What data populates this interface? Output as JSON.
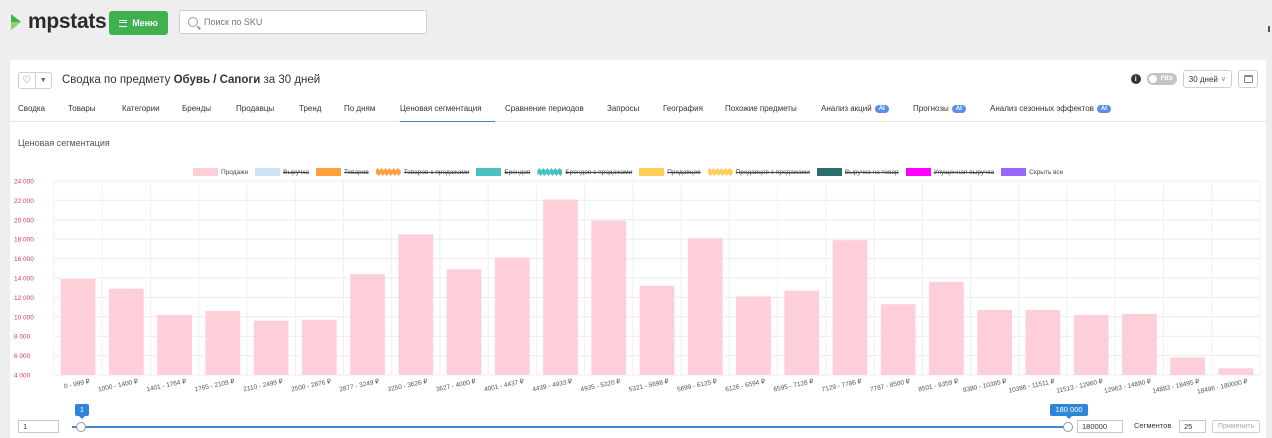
{
  "app": {
    "brand": "mpstats",
    "menu_label": "Меню",
    "search_placeholder": "Поиск по SKU",
    "brand_color": "#3fb24f"
  },
  "header": {
    "title_prefix": "Сводка по предмету",
    "subject": "Обувь / Сапоги",
    "title_suffix": "за 30 дней",
    "fbs_label": "FBS",
    "fbs_enabled": false,
    "period": "30 дней"
  },
  "tabs": [
    {
      "label": "Сводка",
      "active": false,
      "ai": false
    },
    {
      "label": "Товары",
      "active": false,
      "ai": false
    },
    {
      "label": "Категории",
      "active": false,
      "ai": false
    },
    {
      "label": "Бренды",
      "active": false,
      "ai": false
    },
    {
      "label": "Продавцы",
      "active": false,
      "ai": false
    },
    {
      "label": "Тренд",
      "active": false,
      "ai": false
    },
    {
      "label": "По дням",
      "active": false,
      "ai": false
    },
    {
      "label": "Ценовая сегментация",
      "active": true,
      "ai": false
    },
    {
      "label": "Сравнение периодов",
      "active": false,
      "ai": false
    },
    {
      "label": "Запросы",
      "active": false,
      "ai": false
    },
    {
      "label": "География",
      "active": false,
      "ai": false
    },
    {
      "label": "Похожие предметы",
      "active": false,
      "ai": false
    },
    {
      "label": "Анализ акций",
      "active": false,
      "ai": true
    },
    {
      "label": "Прогнозы",
      "active": false,
      "ai": true
    },
    {
      "label": "Анализ сезонных эффектов",
      "active": false,
      "ai": true
    }
  ],
  "ai_badge": "AI",
  "section_title": "Ценовая сегментация",
  "legend": [
    {
      "label": "Продажи",
      "color": "#ffcfd9",
      "enabled": true,
      "style": "solid"
    },
    {
      "label": "Выручка",
      "color": "#cfe3f7",
      "enabled": false,
      "style": "solid"
    },
    {
      "label": "Товаров",
      "color": "#ff9f40",
      "enabled": false,
      "style": "solid"
    },
    {
      "label": "Товаров с продажами",
      "color": "#ff9f40",
      "enabled": false,
      "style": "zigzag"
    },
    {
      "label": "Брендов",
      "color": "#4bc0c0",
      "enabled": false,
      "style": "solid"
    },
    {
      "label": "Брендов с продажами",
      "color": "#4bc0c0",
      "enabled": false,
      "style": "zigzag"
    },
    {
      "label": "Продавцов",
      "color": "#ffcd56",
      "enabled": false,
      "style": "solid"
    },
    {
      "label": "Продавцов с продажами",
      "color": "#ffcd56",
      "enabled": false,
      "style": "zigzag"
    },
    {
      "label": "Выручка на товар",
      "color": "#2a6e6a",
      "enabled": false,
      "style": "solid"
    },
    {
      "label": "Упущенная выручка",
      "color": "#ff00ff",
      "enabled": false,
      "style": "solid"
    },
    {
      "label": "Скрыть все",
      "color": "#9966ff",
      "enabled": true,
      "style": "solid"
    }
  ],
  "chart_data": {
    "type": "bar",
    "series": [
      {
        "name": "Продажи",
        "color": "#ffcfd9"
      }
    ],
    "categories": [
      "0 - 999 ₽",
      "1000 - 1400 ₽",
      "1401 - 1764 ₽",
      "1765 - 2109 ₽",
      "2110 - 2499 ₽",
      "2500 - 2876 ₽",
      "2877 - 3249 ₽",
      "3250 - 3626 ₽",
      "3627 - 4000 ₽",
      "4001 - 4437 ₽",
      "4439 - 4933 ₽",
      "4935 - 5320 ₽",
      "5321 - 5698 ₽",
      "5699 - 6125 ₽",
      "6126 - 6594 ₽",
      "6595 - 7128 ₽",
      "7129 - 7786 ₽",
      "7787 - 8500 ₽",
      "8501 - 9359 ₽",
      "9380 - 10385 ₽",
      "10386 - 11511 ₽",
      "11513 - 12960 ₽",
      "12963 - 14880 ₽",
      "14883 - 18495 ₽",
      "18496 - 180000 ₽"
    ],
    "values": [
      13900,
      12900,
      10200,
      10600,
      9600,
      9700,
      14400,
      18500,
      14900,
      16100,
      22100,
      19900,
      13200,
      18100,
      12100,
      12700,
      17900,
      11300,
      13600,
      10700,
      10700,
      10200,
      10300,
      5800,
      4700
    ],
    "ylim": [
      4000,
      24000
    ],
    "yticks": [
      "4 000",
      "6 000",
      "8 000",
      "10 000",
      "12 000",
      "14 000",
      "16 000",
      "18 000",
      "20 000",
      "22 000",
      "24 000"
    ],
    "grid": true
  },
  "range": {
    "min_value": "1",
    "max_value": "180000",
    "min_bubble": "1",
    "max_bubble": "180 000",
    "segments_label": "Сегментов",
    "segments_value": "25",
    "apply_label": "Применить"
  }
}
